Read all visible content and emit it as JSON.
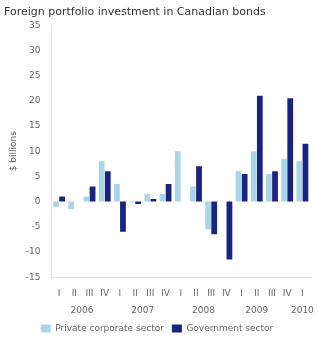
{
  "chart_data": {
    "type": "bar",
    "title": "Foreign portfolio investment in Canadian bonds",
    "ylabel": "$ billions",
    "categories": [
      "I",
      "II",
      "III",
      "IV",
      "I",
      "II",
      "III",
      "IV",
      "I",
      "II",
      "III",
      "IV",
      "I",
      "II",
      "III",
      "IV",
      "I"
    ],
    "series": [
      {
        "name": "Private corporate sector",
        "color": "#aad4e8",
        "values": [
          -1.0,
          -1.5,
          1.0,
          8.0,
          3.5,
          -0.2,
          1.5,
          1.5,
          10.0,
          3.0,
          -5.5,
          0.0,
          6.0,
          10.0,
          5.5,
          8.5,
          8.0
        ]
      },
      {
        "name": "Government sector",
        "color": "#1a237e",
        "values": [
          1.0,
          0.0,
          3.0,
          6.0,
          -6.0,
          -0.5,
          0.5,
          3.5,
          0.0,
          7.0,
          -6.5,
          -11.5,
          5.5,
          21.0,
          6.0,
          20.5,
          11.5
        ]
      }
    ],
    "ylim": [
      -15,
      35
    ],
    "yticks": [
      -15,
      -10,
      -5,
      0,
      5,
      10,
      15,
      20,
      25,
      30,
      35
    ],
    "grid": false,
    "legend": "bottom",
    "annotations": [
      {
        "text": "2006",
        "x": 1.5
      },
      {
        "text": "2007",
        "x": 5.5
      },
      {
        "text": "2008",
        "x": 9.5
      },
      {
        "text": "2009",
        "x": 13.0
      },
      {
        "text": "2010",
        "x": 16.0
      }
    ]
  }
}
